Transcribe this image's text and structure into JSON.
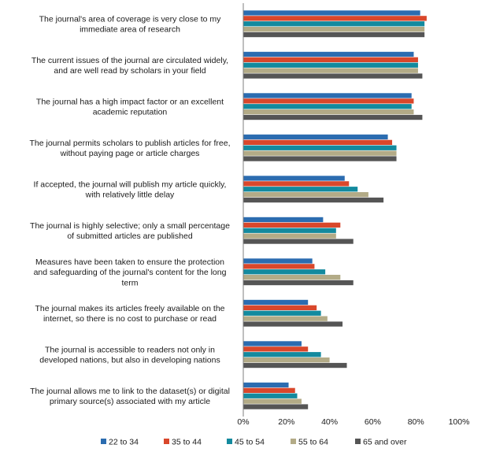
{
  "chart_data": {
    "type": "bar",
    "orientation": "horizontal",
    "title": "",
    "xlabel": "",
    "ylabel": "",
    "xlim": [
      0,
      100
    ],
    "x_ticks": [
      "0%",
      "20%",
      "40%",
      "60%",
      "80%",
      "100%"
    ],
    "categories": [
      [
        "The journal's area of coverage is very close to my",
        "immediate area of research"
      ],
      [
        "The current issues of the journal are circulated widely,",
        "and are well read by scholars in your field"
      ],
      [
        "The journal has a high impact factor or an excellent",
        "academic reputation"
      ],
      [
        "The journal permits scholars to publish articles for free,",
        "without paying page or article charges"
      ],
      [
        "If accepted, the journal will publish my article quickly,",
        "with relatively little delay"
      ],
      [
        "The journal is highly selective; only a small percentage",
        "of submitted articles are published"
      ],
      [
        "Measures have been taken to ensure the protection",
        "and safeguarding of the journal's content for the long",
        "term"
      ],
      [
        "The journal makes its articles freely available on the",
        "internet, so there is no cost to purchase or read"
      ],
      [
        "The journal is accessible to readers not only in",
        "developed nations, but also in developing nations"
      ],
      [
        "The journal allows me to link to the dataset(s) or digital",
        "primary source(s) associated with my article"
      ]
    ],
    "series": [
      {
        "name": "22 to 34",
        "color": "#2b6cb0",
        "values": [
          82,
          79,
          78,
          67,
          47,
          37,
          32,
          30,
          27,
          21
        ]
      },
      {
        "name": "35 to 44",
        "color": "#d9472b",
        "values": [
          85,
          81,
          79,
          69,
          49,
          45,
          33,
          34,
          30,
          24
        ]
      },
      {
        "name": "45 to 54",
        "color": "#138a9e",
        "values": [
          84,
          81,
          78,
          71,
          53,
          43,
          38,
          36,
          36,
          25
        ]
      },
      {
        "name": "55 to 64",
        "color": "#b3ab87",
        "values": [
          84,
          81,
          79,
          71,
          58,
          43,
          45,
          39,
          40,
          27
        ]
      },
      {
        "name": "65 and over",
        "color": "#555555",
        "values": [
          84,
          83,
          83,
          71,
          65,
          51,
          51,
          46,
          48,
          30
        ]
      }
    ],
    "legend_position": "bottom",
    "grid": false
  }
}
